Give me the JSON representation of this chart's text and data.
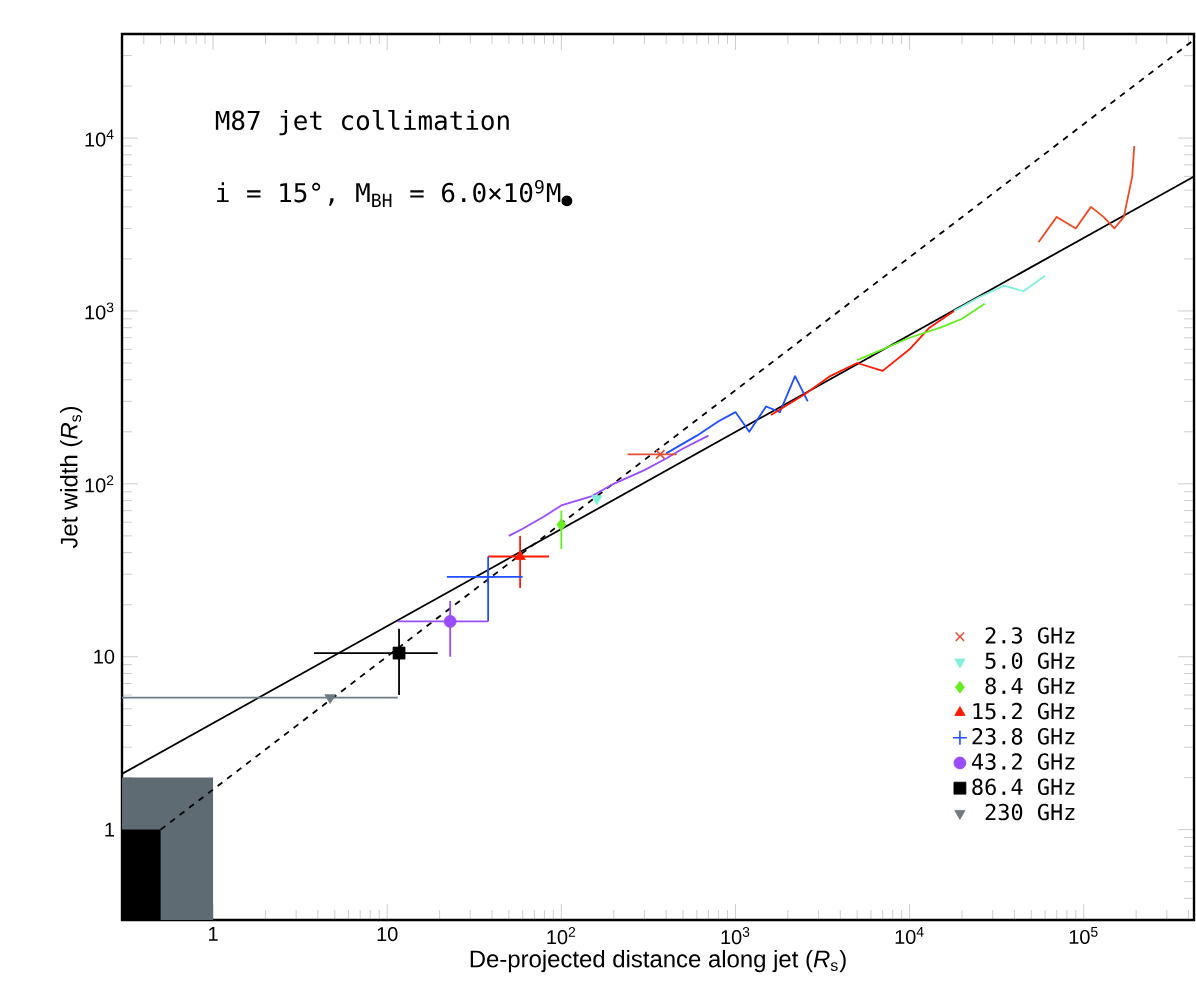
{
  "chart_data": {
    "type": "scatter",
    "xlabel": "De-projected distance along jet (*R*$_{s}$)",
    "ylabel": "Jet width (*R*$_{s}$)",
    "annotations": [
      "M87 jet collimation",
      "i = 15°, M$_{BH}$ = 6.0×10$^{9}$M$_{●}$"
    ],
    "log": "xy",
    "xlim": [
      0.3,
      430000
    ],
    "ylim": [
      0.3,
      40000
    ],
    "xticks": [
      1,
      10,
      {
        "value": 100,
        "label": "10$^{2}$"
      },
      {
        "value": 1000,
        "label": "10$^{3}$"
      },
      {
        "value": 10000,
        "label": "10$^{4}$"
      },
      {
        "value": 100000,
        "label": "10$^{5}$"
      }
    ],
    "yticks": [
      1,
      10,
      {
        "value": 100,
        "label": "10$^{2}$"
      },
      {
        "value": 1000,
        "label": "10$^{3}$"
      },
      {
        "value": 10000,
        "label": "10$^{4}$"
      }
    ],
    "legend": "bottom right",
    "series": [
      {
        "type": "area",
        "color": "#5f6b73",
        "x": [
          0.3,
          1
        ],
        "values": [
          2,
          2
        ]
      },
      {
        "type": "area",
        "color": "#000000",
        "x": [
          0.3,
          0.5
        ],
        "values": [
          1,
          1
        ]
      },
      {
        "type": "line",
        "color": "#000000",
        "line_style": "solid",
        "x": [
          0.3,
          430000
        ],
        "values": [
          2.1,
          6000
        ]
      },
      {
        "type": "line",
        "color": "#000000",
        "line_style": "dashed",
        "x": [
          0.5,
          430000
        ],
        "values": [
          1.0,
          37000
        ]
      },
      {
        "type": "line",
        "color": "#9a4cff",
        "line_style": "solid",
        "x": [
          50,
          60,
          80,
          100,
          150,
          200,
          300,
          400,
          500,
          700
        ],
        "values": [
          50,
          55,
          65,
          75,
          85,
          100,
          120,
          140,
          160,
          190
        ]
      },
      {
        "type": "line",
        "color": "#1f4fff",
        "line_style": "solid",
        "x": [
          400,
          600,
          800,
          1000,
          1200,
          1500,
          1800,
          2200,
          2600
        ],
        "values": [
          150,
          190,
          230,
          260,
          200,
          280,
          260,
          420,
          300
        ]
      },
      {
        "type": "line",
        "color": "#ff1a00",
        "line_style": "solid",
        "x": [
          1600,
          2500,
          3500,
          5000,
          7000,
          10000,
          13000,
          18000
        ],
        "values": [
          250,
          330,
          420,
          500,
          450,
          600,
          800,
          1000
        ]
      },
      {
        "type": "line",
        "color": "#66ee22",
        "line_style": "solid",
        "x": [
          5000,
          7000,
          10000,
          15000,
          20000,
          27000
        ],
        "values": [
          520,
          600,
          700,
          800,
          900,
          1100
        ]
      },
      {
        "type": "line",
        "color": "#80f0d8",
        "line_style": "solid",
        "x": [
          18000,
          25000,
          35000,
          45000,
          60000
        ],
        "values": [
          1000,
          1200,
          1400,
          1300,
          1600
        ]
      },
      {
        "type": "line",
        "color": "#f04a22",
        "line_style": "solid",
        "x": [
          55000,
          70000,
          90000,
          110000,
          130000,
          150000,
          170000,
          190000,
          195000
        ],
        "values": [
          2500,
          3500,
          3000,
          4000,
          3500,
          3000,
          3500,
          6000,
          9000
        ]
      },
      {
        "name": "2.3 GHz",
        "marker": "cross",
        "color": "#e0503a",
        "x": [
          370
        ],
        "values": [
          148
        ],
        "xerrors": [
          [
            240,
            460
          ]
        ]
      },
      {
        "name": "5.0 GHz",
        "marker": "triangle-down",
        "color": "#80f0d8",
        "x": [
          160
        ],
        "values": [
          82
        ]
      },
      {
        "name": "8.4 GHz",
        "marker": "diamond",
        "color": "#66ee22",
        "x": [
          100
        ],
        "values": [
          58
        ],
        "errors": [
          [
            42,
            70
          ]
        ]
      },
      {
        "name": "15.2 GHz",
        "marker": "triangle",
        "color": "#ff1a00",
        "x": [
          58
        ],
        "values": [
          38
        ],
        "xerrors": [
          [
            38,
            85
          ]
        ],
        "errors": [
          [
            25,
            50
          ]
        ]
      },
      {
        "name": "23.8 GHz",
        "marker": "plus",
        "color": "#1f4fff",
        "x": [
          38
        ],
        "values": [
          29
        ],
        "xerrors": [
          [
            22,
            60
          ]
        ],
        "errors": [
          [
            16,
            38
          ]
        ]
      },
      {
        "name": "43.2 GHz",
        "marker": "circle",
        "color": "#9a4cff",
        "x": [
          23
        ],
        "values": [
          16
        ],
        "xerrors": [
          [
            11.5,
            38
          ]
        ],
        "errors": [
          [
            10,
            21
          ]
        ]
      },
      {
        "name": "86.4 GHz",
        "marker": "square",
        "color": "#000000",
        "x": [
          11.7
        ],
        "values": [
          10.5
        ],
        "xerrors": [
          [
            3.8,
            19.5
          ]
        ],
        "errors": [
          [
            6,
            14.5
          ]
        ]
      },
      {
        "name": "230 GHz",
        "marker": "triangle-down",
        "color": "#707c84",
        "x": [
          4.7
        ],
        "values": [
          5.8
        ],
        "xerrors": [
          [
            0.3,
            11.5
          ]
        ]
      }
    ]
  }
}
